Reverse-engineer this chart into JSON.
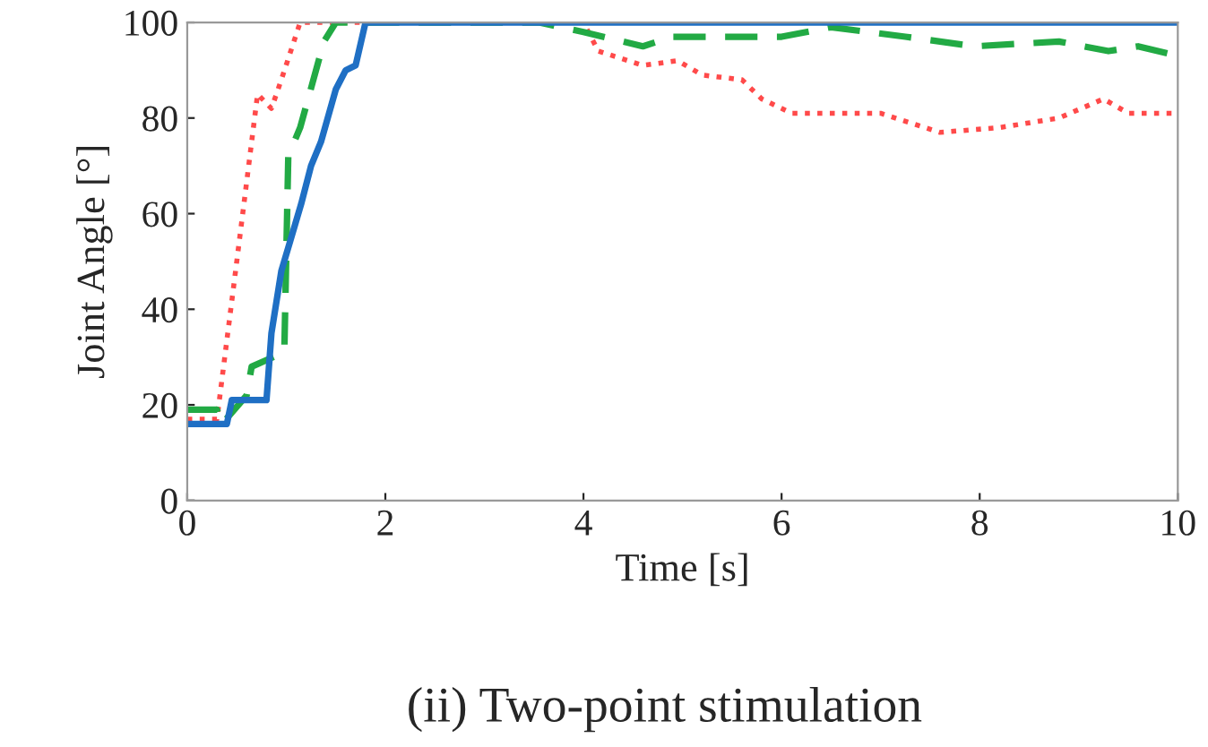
{
  "chart_data": {
    "type": "line",
    "xlabel": "Time [s]",
    "ylabel": "Joint Angle [°]",
    "annotations": [
      "(ii) Two-point stimulation"
    ],
    "xlim": [
      0,
      10
    ],
    "xticks": [
      0,
      2,
      4,
      6,
      8,
      10
    ],
    "ylim": [
      0,
      100
    ],
    "yticks": [
      0,
      20,
      40,
      60,
      80,
      100
    ],
    "grid": false,
    "legend": false,
    "series": [
      {
        "color": "#ff4a4a",
        "line_style": "dotted",
        "x": [
          0,
          0.3,
          0.5,
          0.71,
          0.85,
          0.95,
          1.14,
          4.0,
          4.15,
          4.6,
          4.95,
          5.2,
          5.6,
          5.8,
          6.1,
          7.0,
          7.6,
          8.2,
          8.8,
          9.25,
          9.5,
          10
        ],
        "values": [
          17,
          17,
          50,
          85,
          82,
          88,
          100,
          100,
          94,
          91,
          92,
          89,
          88,
          84,
          81,
          81,
          77,
          78,
          80,
          84,
          81,
          81
        ]
      },
      {
        "color": "#22aa44",
        "line_style": "dashed",
        "x": [
          0,
          0.3,
          0.35,
          0.6,
          0.65,
          0.98,
          1.02,
          1.14,
          1.38,
          1.5,
          3.55,
          4.0,
          4.6,
          4.9,
          6.0,
          6.5,
          7.25,
          7.95,
          8.8,
          9.3,
          9.6,
          10
        ],
        "values": [
          19,
          19,
          16,
          22,
          28,
          31,
          72,
          78,
          96,
          100,
          100,
          98,
          95,
          97,
          97,
          99,
          97,
          95,
          96,
          94,
          95,
          93
        ]
      },
      {
        "color": "#1f6fc4",
        "line_style": "solid",
        "x": [
          0,
          0.4,
          0.45,
          0.8,
          0.85,
          0.95,
          1.05,
          1.15,
          1.25,
          1.35,
          1.5,
          1.6,
          1.7,
          1.8,
          10
        ],
        "values": [
          16,
          16,
          21,
          21,
          35,
          48,
          55,
          62,
          70,
          75,
          86,
          90,
          91,
          100,
          100
        ]
      }
    ]
  }
}
